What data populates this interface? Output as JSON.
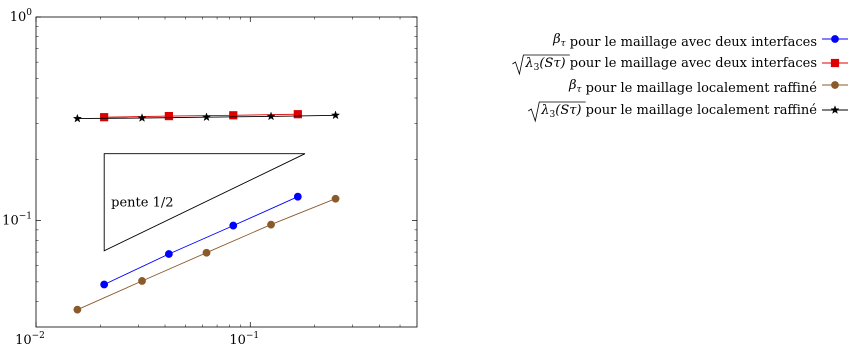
{
  "chart_data": {
    "type": "line",
    "xscale": "log",
    "yscale": "log",
    "xlim": [
      0.01,
      0.6
    ],
    "ylim": [
      0.03,
      1
    ],
    "x_ticks": [
      {
        "base": "10",
        "exp": "−2",
        "value": 0.01
      },
      {
        "base": "10",
        "exp": "−1",
        "value": 0.1
      }
    ],
    "y_ticks": [
      {
        "base": "10",
        "exp": "0",
        "value": 1
      },
      {
        "base": "10",
        "exp": "−1",
        "value": 0.1
      }
    ],
    "grid": false,
    "legend_position": "outside-right-top",
    "series": [
      {
        "name": "βτ pour le maillage avec deux interfaces",
        "legend_math": "β",
        "legend_sub": "τ",
        "legend_text": " pour le maillage avec deux interfaces",
        "color": "#0000ff",
        "marker": "circle",
        "x": [
          0.0208,
          0.0417,
          0.0833,
          0.1667
        ],
        "y": [
          0.0485,
          0.0685,
          0.0945,
          0.131
        ]
      },
      {
        "name": "√λ3(Sτ) pour le maillage avec deux interfaces",
        "legend_math": "λ",
        "legend_sub": "3",
        "legend_arg": "(Sτ)",
        "legend_text": " pour le maillage avec deux interfaces",
        "color": "#dd0000",
        "marker": "square",
        "x": [
          0.0208,
          0.0417,
          0.0833,
          0.1667
        ],
        "y": [
          0.322,
          0.326,
          0.329,
          0.333
        ]
      },
      {
        "name": "βτ pour le maillage localement raffiné",
        "legend_math": "β",
        "legend_sub": "τ",
        "legend_text": " pour le maillage localement raffiné",
        "color": "#8b5a2b",
        "marker": "circle",
        "x": [
          0.0156,
          0.03125,
          0.0625,
          0.125,
          0.25
        ],
        "y": [
          0.0365,
          0.0505,
          0.0695,
          0.0955,
          0.128
        ]
      },
      {
        "name": "√λ3(Sτ) pour le maillage localement raffiné",
        "legend_math": "λ",
        "legend_sub": "3",
        "legend_arg": "(Sτ)",
        "legend_text": " pour le maillage localement raffiné",
        "color": "#000000",
        "marker": "star",
        "x": [
          0.0156,
          0.03125,
          0.0625,
          0.125,
          0.25
        ],
        "y": [
          0.317,
          0.319,
          0.322,
          0.325,
          0.329
        ]
      }
    ],
    "slope_triangle": {
      "label": "pente 1/2",
      "x": [
        0.0208,
        0.0208,
        0.18
      ],
      "y": [
        0.071,
        0.213,
        0.213
      ]
    }
  }
}
